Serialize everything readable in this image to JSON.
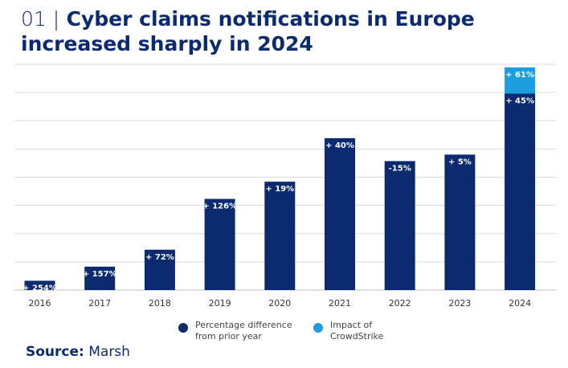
{
  "title": {
    "number": "01 |",
    "line1": "Cyber claims notifications in Europe",
    "line2": "increased sharply in 2024"
  },
  "colors": {
    "bar": "#0b2a6f",
    "crowdstrike": "#1a9ee0",
    "grid": "#d9d9d9",
    "title": "#0b2a6f"
  },
  "chart_data": {
    "type": "bar",
    "stacked": true,
    "title": "Cyber claims notifications in Europe increased sharply in 2024",
    "xlabel": "",
    "ylabel": "",
    "categories": [
      "2016",
      "2017",
      "2018",
      "2019",
      "2020",
      "2021",
      "2022",
      "2023",
      "2024"
    ],
    "series": [
      {
        "name": "Percentage difference from prior year",
        "values": [
          3.3,
          8.3,
          14.3,
          32.3,
          38.4,
          53.8,
          45.7,
          48.0,
          69.6
        ],
        "labels": [
          "+ 254%",
          "+ 157%",
          "+ 72%",
          "+ 126%",
          "+ 19%",
          "+ 40%",
          "-15%",
          "+ 5%",
          "+ 45%"
        ]
      },
      {
        "name": "Impact of CrowdStrike",
        "values": [
          0,
          0,
          0,
          0,
          0,
          0,
          0,
          0,
          9.3
        ],
        "labels": [
          "",
          "",
          "",
          "",
          "",
          "",
          "",
          "",
          "+ 61%"
        ]
      }
    ],
    "ylim": [
      0,
      80
    ],
    "grid": true,
    "legend_position": "bottom"
  },
  "legend": [
    {
      "label_line1": "Percentage difference",
      "label_line2": "from prior year",
      "color": "#0b2a6f"
    },
    {
      "label_line1": "Impact of",
      "label_line2": "CrowdStrike",
      "color": "#1a9ee0"
    }
  ],
  "source": {
    "prefix": "Source:",
    "name": "Marsh"
  }
}
